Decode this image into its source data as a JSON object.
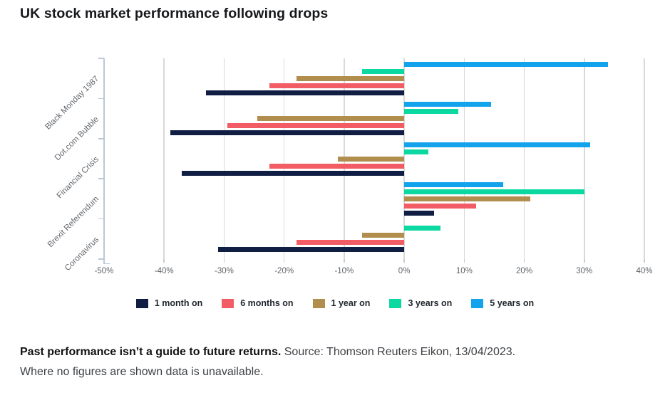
{
  "title": "UK stock market performance following drops",
  "chart_data": {
    "type": "bar",
    "orientation": "horizontal",
    "title": "UK stock market performance following drops",
    "categories": [
      "Black Monday 1987",
      "Dot.com Bubble",
      "Financial Crisis",
      "Brexit Referendum",
      "Coronavirus"
    ],
    "series": [
      {
        "name": "1 month on",
        "color": "#101e43",
        "values": [
          -33,
          -39,
          -37,
          5,
          -31
        ]
      },
      {
        "name": "6 months on",
        "color": "#f25c64",
        "values": [
          -22.5,
          -29.5,
          -22.5,
          12,
          -18
        ]
      },
      {
        "name": "1 year on",
        "color": "#b18e4d",
        "values": [
          -18,
          -24.5,
          -11,
          21,
          -7
        ]
      },
      {
        "name": "3 years on",
        "color": "#0cd9a2",
        "values": [
          -7,
          9,
          4,
          30,
          6
        ]
      },
      {
        "name": "5 years on",
        "color": "#13a3ed",
        "values": [
          34,
          14.5,
          31,
          16.5,
          null
        ]
      }
    ],
    "x_ticks": [
      "-50%",
      "-40%",
      "-30%",
      "-20%",
      "-10%",
      "0%",
      "10%",
      "20%",
      "30%",
      "40%"
    ],
    "xlim": [
      -50,
      40
    ],
    "unit": "%",
    "grid": true,
    "legend_position": "bottom",
    "note": "Where no figures are shown data is unavailable."
  },
  "footnote": {
    "bold": "Past performance isn’t a guide to future returns.",
    "source": " Source: Thomson Reuters Eikon, 13/04/2023.",
    "line2": "Where no figures are shown data is unavailable."
  }
}
